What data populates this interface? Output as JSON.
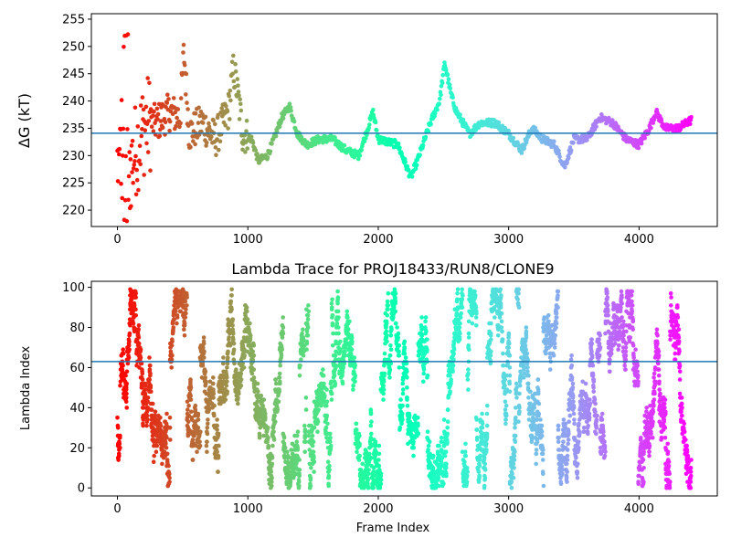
{
  "chart_data": [
    {
      "type": "scatter",
      "title": "",
      "xlabel": "",
      "ylabel": "ΔG (kT)",
      "xlim": [
        -200,
        4600
      ],
      "ylim": [
        217,
        256
      ],
      "xticks": [
        0,
        1000,
        2000,
        3000,
        4000
      ],
      "yticks": [
        220,
        225,
        230,
        235,
        240,
        245,
        250,
        255
      ],
      "hline": 234.1,
      "colormap": "rainbow (frame index mapped red → violet)",
      "grid": false,
      "x_range_of_points": [
        0,
        4400
      ],
      "trace_keypoints": [
        {
          "x": 0,
          "y": 230
        },
        {
          "x": 40,
          "y": 240
        },
        {
          "x": 80,
          "y": 226
        },
        {
          "x": 150,
          "y": 232
        },
        {
          "x": 220,
          "y": 236
        },
        {
          "x": 300,
          "y": 236
        },
        {
          "x": 400,
          "y": 238
        },
        {
          "x": 480,
          "y": 237
        },
        {
          "x": 510,
          "y": 249
        },
        {
          "x": 550,
          "y": 234
        },
        {
          "x": 650,
          "y": 236
        },
        {
          "x": 750,
          "y": 233
        },
        {
          "x": 850,
          "y": 238
        },
        {
          "x": 890,
          "y": 246
        },
        {
          "x": 930,
          "y": 240
        },
        {
          "x": 960,
          "y": 234
        },
        {
          "x": 1030,
          "y": 233
        },
        {
          "x": 1080,
          "y": 229
        },
        {
          "x": 1150,
          "y": 230
        },
        {
          "x": 1200,
          "y": 233
        },
        {
          "x": 1260,
          "y": 237
        },
        {
          "x": 1320,
          "y": 239
        },
        {
          "x": 1380,
          "y": 234
        },
        {
          "x": 1450,
          "y": 232
        },
        {
          "x": 1550,
          "y": 233
        },
        {
          "x": 1650,
          "y": 233
        },
        {
          "x": 1750,
          "y": 231
        },
        {
          "x": 1850,
          "y": 230
        },
        {
          "x": 1920,
          "y": 235
        },
        {
          "x": 1960,
          "y": 238
        },
        {
          "x": 2000,
          "y": 233
        },
        {
          "x": 2150,
          "y": 232
        },
        {
          "x": 2250,
          "y": 226
        },
        {
          "x": 2300,
          "y": 229
        },
        {
          "x": 2400,
          "y": 236
        },
        {
          "x": 2470,
          "y": 240
        },
        {
          "x": 2510,
          "y": 247
        },
        {
          "x": 2560,
          "y": 241
        },
        {
          "x": 2600,
          "y": 238
        },
        {
          "x": 2700,
          "y": 234
        },
        {
          "x": 2780,
          "y": 236
        },
        {
          "x": 2900,
          "y": 236
        },
        {
          "x": 3000,
          "y": 234
        },
        {
          "x": 3100,
          "y": 231
        },
        {
          "x": 3180,
          "y": 235
        },
        {
          "x": 3260,
          "y": 233
        },
        {
          "x": 3350,
          "y": 232
        },
        {
          "x": 3430,
          "y": 228
        },
        {
          "x": 3500,
          "y": 233
        },
        {
          "x": 3600,
          "y": 233
        },
        {
          "x": 3700,
          "y": 237
        },
        {
          "x": 3800,
          "y": 236
        },
        {
          "x": 3900,
          "y": 233
        },
        {
          "x": 4000,
          "y": 232
        },
        {
          "x": 4080,
          "y": 235
        },
        {
          "x": 4130,
          "y": 238
        },
        {
          "x": 4200,
          "y": 235
        },
        {
          "x": 4300,
          "y": 235
        },
        {
          "x": 4400,
          "y": 236.5
        }
      ]
    },
    {
      "type": "scatter",
      "title": "Lambda Trace for PROJ18433/RUN8/CLONE9",
      "xlabel": "Frame Index",
      "ylabel": "Lambda Index",
      "xlim": [
        -200,
        4600
      ],
      "ylim": [
        -4,
        103
      ],
      "xticks": [
        0,
        1000,
        2000,
        3000,
        4000
      ],
      "yticks": [
        0,
        20,
        40,
        60,
        80,
        100
      ],
      "hline": 63,
      "colormap": "rainbow (frame index mapped red → violet)",
      "grid": false,
      "x_range_of_points": [
        0,
        4400
      ],
      "y_range_of_points": [
        0,
        99
      ],
      "point_count_approx": 4400
    }
  ]
}
